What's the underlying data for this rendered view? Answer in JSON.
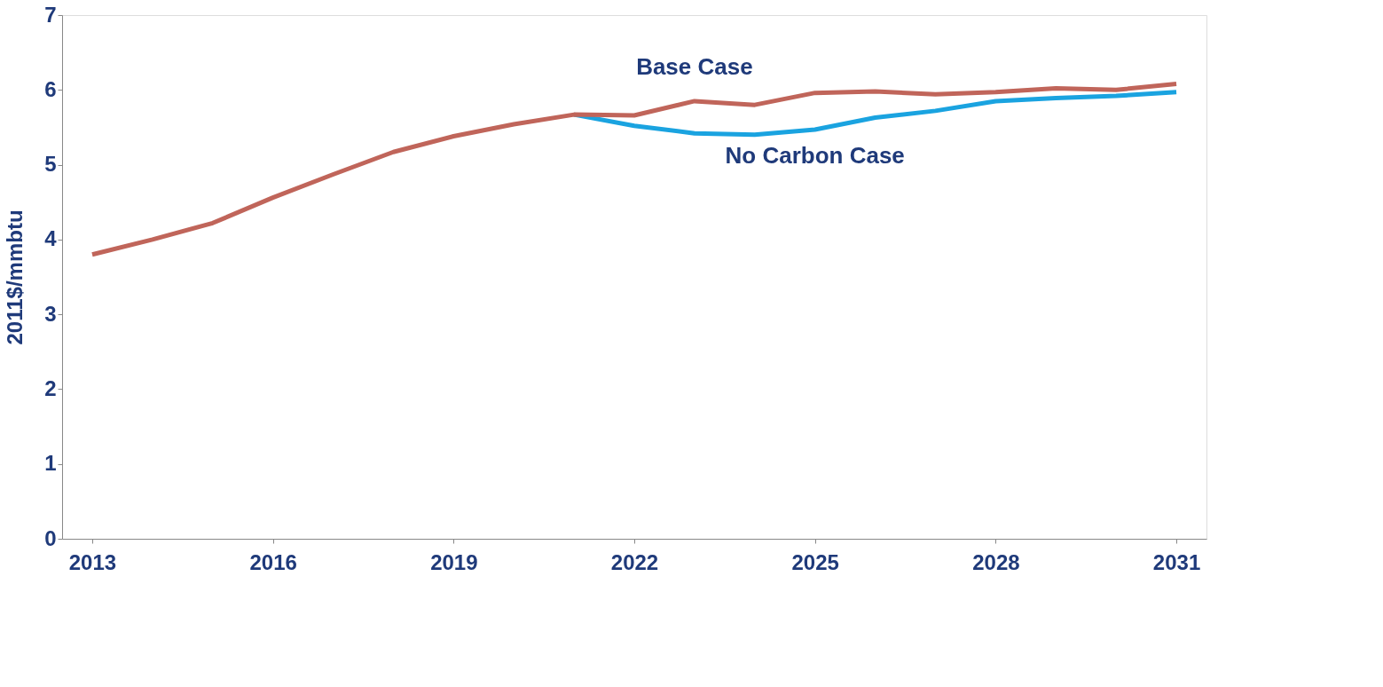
{
  "chart_data": {
    "type": "line",
    "ylabel": "2011$/mmbtu",
    "x": [
      2013,
      2014,
      2015,
      2016,
      2017,
      2018,
      2019,
      2020,
      2021,
      2022,
      2023,
      2024,
      2025,
      2026,
      2027,
      2028,
      2029,
      2030,
      2031
    ],
    "xlim": [
      2012.5,
      2031.5
    ],
    "xticks": [
      2013,
      2016,
      2019,
      2022,
      2025,
      2028,
      2031
    ],
    "ylim": [
      0,
      7
    ],
    "yticks": [
      0,
      1,
      2,
      3,
      4,
      5,
      6,
      7
    ],
    "series": [
      {
        "name": "No Carbon Case",
        "color": "#1aa3e0",
        "values": [
          null,
          null,
          null,
          null,
          null,
          null,
          null,
          null,
          5.67,
          5.52,
          5.42,
          5.4,
          5.47,
          5.63,
          5.72,
          5.85,
          5.89,
          5.92,
          5.97
        ]
      },
      {
        "name": "Base Case",
        "color": "#c0655a",
        "values": [
          3.8,
          4.0,
          4.22,
          4.56,
          4.87,
          5.17,
          5.38,
          5.54,
          5.67,
          5.66,
          5.85,
          5.8,
          5.96,
          5.98,
          5.94,
          5.97,
          6.02,
          6.0,
          6.08
        ]
      }
    ],
    "grid": false,
    "line_style": "solid",
    "marker": "none"
  }
}
